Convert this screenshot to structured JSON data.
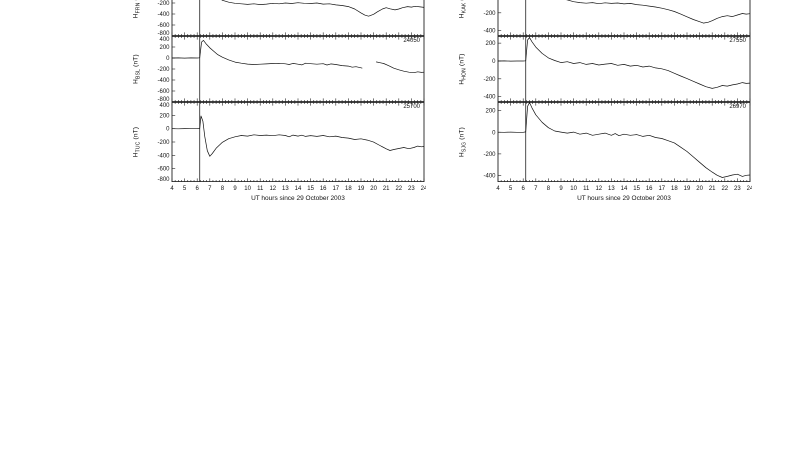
{
  "labels": {
    "h_prefix": "H",
    "unit": "(nT)",
    "x_label": "UT hours since 29 October 2003"
  },
  "axis": {
    "x_range": [
      4,
      24
    ],
    "x_ticks": [
      "4",
      "5",
      "6",
      "7",
      "8",
      "9",
      "10",
      "11",
      "12",
      "13",
      "14",
      "15",
      "16",
      "17",
      "18",
      "19",
      "20",
      "21",
      "22",
      "23",
      "24"
    ]
  },
  "chart_data": [
    {
      "type": "line",
      "station": "FRN",
      "ylabel": "H_FRN (nT)",
      "partial_top": true,
      "xlim": [
        4,
        24
      ],
      "ylim": [
        -800,
        400
      ],
      "yticks": [
        400,
        200,
        0,
        -200,
        -400,
        -600,
        -800
      ],
      "vline_x": 6.2,
      "segments": [
        [
          [
            4,
            2
          ],
          [
            4.5,
            0
          ],
          [
            5,
            3
          ],
          [
            5.5,
            0
          ],
          [
            6,
            1
          ],
          [
            6.2,
            0
          ],
          [
            6.35,
            160
          ],
          [
            6.5,
            210
          ],
          [
            6.7,
            140
          ],
          [
            7,
            60
          ],
          [
            7.3,
            -20
          ],
          [
            7.6,
            -90
          ],
          [
            8,
            -150
          ],
          [
            8.5,
            -185
          ],
          [
            9,
            -205
          ],
          [
            9.5,
            -215
          ],
          [
            10,
            -225
          ],
          [
            10.5,
            -215
          ],
          [
            11,
            -230
          ],
          [
            11.5,
            -220
          ],
          [
            12,
            -205
          ],
          [
            12.5,
            -215
          ],
          [
            13,
            -200
          ],
          [
            13.5,
            -210
          ],
          [
            14,
            -195
          ],
          [
            14.5,
            -205
          ],
          [
            15,
            -210
          ],
          [
            15.5,
            -200
          ],
          [
            16,
            -220
          ],
          [
            16.5,
            -215
          ],
          [
            17,
            -235
          ],
          [
            17.5,
            -245
          ],
          [
            18,
            -265
          ],
          [
            18.5,
            -310
          ],
          [
            19,
            -380
          ],
          [
            19.3,
            -420
          ],
          [
            19.6,
            -440
          ],
          [
            20,
            -405
          ],
          [
            20.3,
            -360
          ],
          [
            20.7,
            -310
          ],
          [
            21,
            -285
          ],
          [
            21.3,
            -305
          ],
          [
            21.7,
            -325
          ],
          [
            22,
            -310
          ],
          [
            22.3,
            -285
          ],
          [
            22.7,
            -265
          ],
          [
            23,
            -275
          ],
          [
            23.3,
            -260
          ],
          [
            23.7,
            -270
          ],
          [
            24,
            -280
          ]
        ]
      ]
    },
    {
      "type": "line",
      "station": "BSL",
      "ylabel": "H_BSL (nT)",
      "baseline": "24050",
      "xlim": [
        4,
        24
      ],
      "ylim": [
        -800,
        400
      ],
      "yticks": [
        400,
        200,
        0,
        -200,
        -400,
        -600,
        -800
      ],
      "vline_x": 6.2,
      "segments": [
        [
          [
            4,
            0
          ],
          [
            4.5,
            2
          ],
          [
            5,
            -2
          ],
          [
            5.5,
            1
          ],
          [
            6,
            0
          ],
          [
            6.2,
            3
          ],
          [
            6.35,
            290
          ],
          [
            6.5,
            320
          ],
          [
            6.7,
            260
          ],
          [
            7,
            185
          ],
          [
            7.3,
            125
          ],
          [
            7.6,
            65
          ],
          [
            8,
            15
          ],
          [
            8.5,
            -35
          ],
          [
            9,
            -75
          ],
          [
            9.5,
            -95
          ],
          [
            10,
            -110
          ],
          [
            10.5,
            -118
          ],
          [
            11,
            -112
          ],
          [
            11.5,
            -108
          ],
          [
            12,
            -100
          ],
          [
            12.5,
            -96
          ],
          [
            13,
            -106
          ],
          [
            13.3,
            -118
          ],
          [
            13.6,
            -98
          ],
          [
            14,
            -112
          ],
          [
            14.3,
            -125
          ],
          [
            14.6,
            -95
          ],
          [
            15,
            -104
          ],
          [
            15.5,
            -112
          ],
          [
            16,
            -104
          ],
          [
            16.3,
            -128
          ],
          [
            16.6,
            -108
          ],
          [
            17,
            -118
          ],
          [
            17.5,
            -138
          ],
          [
            18,
            -148
          ],
          [
            18.3,
            -168
          ],
          [
            18.6,
            -158
          ],
          [
            19,
            -178
          ],
          [
            19.1,
            -185
          ]
        ],
        [
          [
            20.2,
            -70
          ],
          [
            20.5,
            -85
          ],
          [
            20.8,
            -100
          ],
          [
            21.2,
            -140
          ],
          [
            21.6,
            -185
          ],
          [
            22,
            -215
          ],
          [
            22.4,
            -240
          ],
          [
            22.8,
            -258
          ],
          [
            23.2,
            -268
          ],
          [
            23.5,
            -250
          ],
          [
            23.8,
            -262
          ],
          [
            24,
            -258
          ]
        ]
      ]
    },
    {
      "type": "line",
      "station": "TUC",
      "ylabel": "H_TUC (nT)",
      "baseline": "25700",
      "xlabel": "UT hours since 29 October 2003",
      "xlim": [
        4,
        24
      ],
      "ylim": [
        -800,
        400
      ],
      "yticks": [
        400,
        200,
        0,
        -200,
        -400,
        -600,
        -800
      ],
      "vline_x": 6.2,
      "segments": [
        [
          [
            4,
            0
          ],
          [
            4.5,
            -2
          ],
          [
            5,
            1
          ],
          [
            5.5,
            0
          ],
          [
            6,
            -1
          ],
          [
            6.2,
            2
          ],
          [
            6.3,
            190
          ],
          [
            6.45,
            110
          ],
          [
            6.6,
            -120
          ],
          [
            6.8,
            -330
          ],
          [
            7,
            -415
          ],
          [
            7.2,
            -372
          ],
          [
            7.5,
            -295
          ],
          [
            8,
            -205
          ],
          [
            8.5,
            -150
          ],
          [
            9,
            -122
          ],
          [
            9.5,
            -102
          ],
          [
            10,
            -112
          ],
          [
            10.5,
            -92
          ],
          [
            11,
            -102
          ],
          [
            11.5,
            -96
          ],
          [
            12,
            -106
          ],
          [
            12.5,
            -92
          ],
          [
            13,
            -102
          ],
          [
            13.3,
            -122
          ],
          [
            13.6,
            -96
          ],
          [
            14,
            -112
          ],
          [
            14.3,
            -98
          ],
          [
            14.6,
            -116
          ],
          [
            15,
            -104
          ],
          [
            15.5,
            -116
          ],
          [
            16,
            -102
          ],
          [
            16.5,
            -122
          ],
          [
            17,
            -112
          ],
          [
            17.5,
            -132
          ],
          [
            18,
            -142
          ],
          [
            18.5,
            -162
          ],
          [
            19,
            -152
          ],
          [
            19.5,
            -172
          ],
          [
            20,
            -202
          ],
          [
            20.5,
            -252
          ],
          [
            21,
            -302
          ],
          [
            21.3,
            -328
          ],
          [
            21.6,
            -312
          ],
          [
            22,
            -298
          ],
          [
            22.4,
            -282
          ],
          [
            22.8,
            -300
          ],
          [
            23.2,
            -282
          ],
          [
            23.5,
            -262
          ],
          [
            23.8,
            -272
          ],
          [
            24,
            -268
          ]
        ]
      ]
    },
    {
      "type": "line",
      "station": "KAK",
      "ylabel": "H_KAK (nT)",
      "partial_top": true,
      "xlim": [
        4,
        24
      ],
      "ylim": [
        -460,
        280
      ],
      "yticks": [
        200,
        0,
        -200,
        -400
      ],
      "vline_x": 6.2,
      "segments": [
        [
          [
            4,
            2
          ],
          [
            4.5,
            0
          ],
          [
            5,
            2
          ],
          [
            5.5,
            0
          ],
          [
            6,
            1
          ],
          [
            6.2,
            0
          ],
          [
            6.35,
            120
          ],
          [
            6.5,
            155
          ],
          [
            6.8,
            110
          ],
          [
            7,
            85
          ],
          [
            7.5,
            45
          ],
          [
            8,
            10
          ],
          [
            8.5,
            -20
          ],
          [
            9,
            -40
          ],
          [
            9.5,
            -55
          ],
          [
            10,
            -75
          ],
          [
            10.5,
            -85
          ],
          [
            11,
            -92
          ],
          [
            11.5,
            -85
          ],
          [
            12,
            -98
          ],
          [
            12.5,
            -88
          ],
          [
            13,
            -95
          ],
          [
            13.5,
            -90
          ],
          [
            14,
            -100
          ],
          [
            14.5,
            -95
          ],
          [
            15,
            -108
          ],
          [
            15.5,
            -115
          ],
          [
            16,
            -125
          ],
          [
            16.5,
            -135
          ],
          [
            17,
            -148
          ],
          [
            17.5,
            -165
          ],
          [
            18,
            -185
          ],
          [
            18.5,
            -215
          ],
          [
            19,
            -245
          ],
          [
            19.5,
            -275
          ],
          [
            20,
            -300
          ],
          [
            20.3,
            -315
          ],
          [
            20.7,
            -305
          ],
          [
            21,
            -288
          ],
          [
            21.4,
            -262
          ],
          [
            21.8,
            -242
          ],
          [
            22.2,
            -232
          ],
          [
            22.6,
            -242
          ],
          [
            23,
            -225
          ],
          [
            23.4,
            -208
          ],
          [
            23.7,
            -215
          ],
          [
            24,
            -210
          ]
        ]
      ]
    },
    {
      "type": "line",
      "station": "HON",
      "ylabel": "H_HON (nT)",
      "baseline": "27550",
      "xlim": [
        4,
        24
      ],
      "ylim": [
        -460,
        280
      ],
      "yticks": [
        200,
        0,
        -200,
        -400
      ],
      "vline_x": 6.2,
      "segments": [
        [
          [
            4,
            0
          ],
          [
            4.5,
            1
          ],
          [
            5,
            -1
          ],
          [
            5.5,
            0
          ],
          [
            6,
            0
          ],
          [
            6.2,
            2
          ],
          [
            6.35,
            235
          ],
          [
            6.5,
            262
          ],
          [
            6.7,
            215
          ],
          [
            7,
            155
          ],
          [
            7.5,
            85
          ],
          [
            8,
            35
          ],
          [
            8.5,
            5
          ],
          [
            9,
            -18
          ],
          [
            9.5,
            -8
          ],
          [
            10,
            -28
          ],
          [
            10.5,
            -18
          ],
          [
            11,
            -38
          ],
          [
            11.5,
            -28
          ],
          [
            12,
            -45
          ],
          [
            12.5,
            -35
          ],
          [
            13,
            -28
          ],
          [
            13.5,
            -48
          ],
          [
            14,
            -38
          ],
          [
            14.5,
            -58
          ],
          [
            15,
            -48
          ],
          [
            15.5,
            -68
          ],
          [
            16,
            -58
          ],
          [
            16.5,
            -78
          ],
          [
            17,
            -88
          ],
          [
            17.5,
            -108
          ],
          [
            18,
            -138
          ],
          [
            18.5,
            -168
          ],
          [
            19,
            -198
          ],
          [
            19.5,
            -228
          ],
          [
            20,
            -258
          ],
          [
            20.5,
            -288
          ],
          [
            21,
            -308
          ],
          [
            21.4,
            -295
          ],
          [
            21.8,
            -275
          ],
          [
            22.2,
            -282
          ],
          [
            22.6,
            -268
          ],
          [
            23,
            -258
          ],
          [
            23.4,
            -242
          ],
          [
            23.7,
            -252
          ],
          [
            24,
            -248
          ]
        ]
      ]
    },
    {
      "type": "line",
      "station": "SJG",
      "ylabel": "H_SJG (nT)",
      "baseline": "26970",
      "xlabel": "UT hours since 29 October 2003",
      "xlim": [
        4,
        24
      ],
      "ylim": [
        -460,
        280
      ],
      "yticks": [
        200,
        0,
        -200,
        -400
      ],
      "vline_x": 6.2,
      "segments": [
        [
          [
            4,
            1
          ],
          [
            4.5,
            0
          ],
          [
            5,
            2
          ],
          [
            5.5,
            0
          ],
          [
            6,
            0
          ],
          [
            6.2,
            3
          ],
          [
            6.35,
            240
          ],
          [
            6.5,
            275
          ],
          [
            6.7,
            225
          ],
          [
            7,
            162
          ],
          [
            7.5,
            92
          ],
          [
            8,
            42
          ],
          [
            8.5,
            12
          ],
          [
            9,
            2
          ],
          [
            9.5,
            -8
          ],
          [
            10,
            2
          ],
          [
            10.5,
            -18
          ],
          [
            11,
            -8
          ],
          [
            11.5,
            -28
          ],
          [
            12,
            -18
          ],
          [
            12.5,
            -8
          ],
          [
            13,
            -28
          ],
          [
            13.3,
            -12
          ],
          [
            13.6,
            -32
          ],
          [
            14,
            -18
          ],
          [
            14.5,
            -28
          ],
          [
            15,
            -22
          ],
          [
            15.5,
            -38
          ],
          [
            16,
            -28
          ],
          [
            16.5,
            -48
          ],
          [
            17,
            -58
          ],
          [
            17.5,
            -78
          ],
          [
            18,
            -98
          ],
          [
            18.5,
            -138
          ],
          [
            19,
            -178
          ],
          [
            19.5,
            -228
          ],
          [
            20,
            -278
          ],
          [
            20.5,
            -328
          ],
          [
            21,
            -368
          ],
          [
            21.4,
            -398
          ],
          [
            21.8,
            -418
          ],
          [
            22.2,
            -408
          ],
          [
            22.6,
            -395
          ],
          [
            23,
            -388
          ],
          [
            23.4,
            -408
          ],
          [
            23.7,
            -398
          ],
          [
            24,
            -395
          ]
        ]
      ]
    }
  ]
}
